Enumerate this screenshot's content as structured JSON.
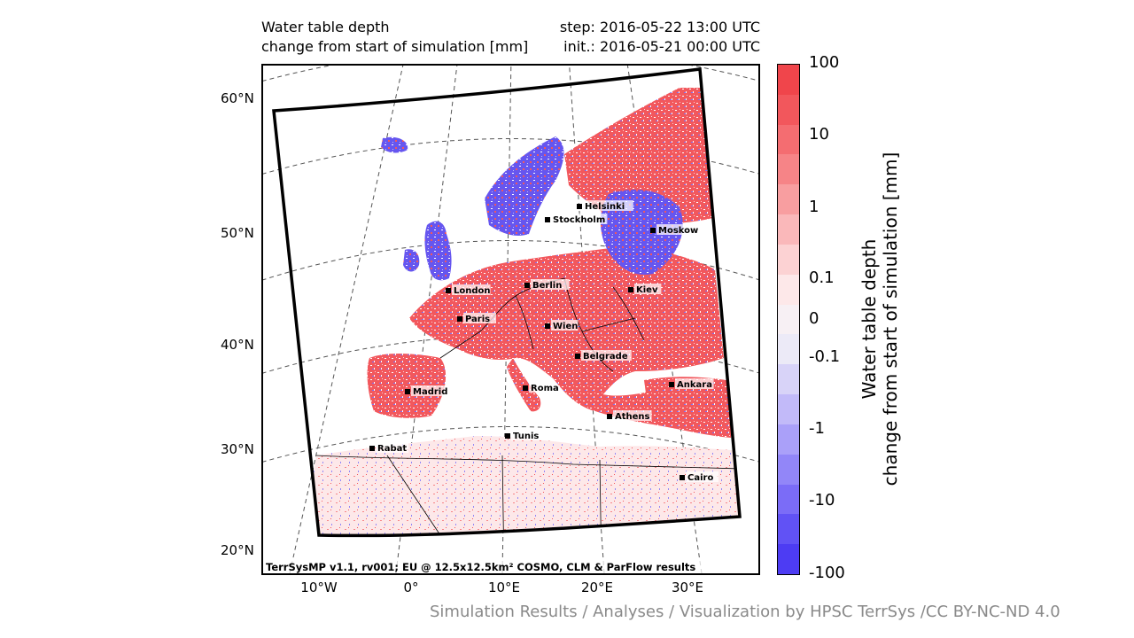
{
  "title": {
    "left_line1": "Water table depth",
    "left_line2": "change from start of simulation [mm]",
    "right_line1": "step: 2016-05-22 13:00 UTC",
    "right_line2": "init.: 2016-05-21 00:00 UTC"
  },
  "axes": {
    "lat_labels": [
      "60°N",
      "50°N",
      "40°N",
      "30°N",
      "20°N"
    ],
    "lon_labels": [
      "10°W",
      "0°",
      "10°E",
      "20°E",
      "30°E"
    ]
  },
  "cities": [
    "Helsinki",
    "Stockholm",
    "Moskow",
    "London",
    "Berlin",
    "Kiev",
    "Paris",
    "Wien",
    "Belgrade",
    "Madrid",
    "Roma",
    "Ankara",
    "Athens",
    "Tunis",
    "Rabat",
    "Cairo"
  ],
  "map_footer": "TerrSysMP v1.1, rv001; EU @ 12.5x12.5km² COSMO, CLM & ParFlow results",
  "colorbar": {
    "label_line1": "Water table depth",
    "label_line2": "change from start of simulation [mm]",
    "ticks": [
      "100",
      "10",
      "1",
      "0.1",
      "0",
      "-0.1",
      "-1",
      "-10",
      "-100"
    ],
    "colors": [
      "#f0454b",
      "#f2575c",
      "#f46d71",
      "#f68487",
      "#f89ea0",
      "#fab8ba",
      "#fcd2d3",
      "#fde8e9",
      "#f7f0f4",
      "#eceaf7",
      "#d8d3f8",
      "#c2baf9",
      "#aaa0f9",
      "#9286f8",
      "#7b6cf7",
      "#6152f5",
      "#4d3cf3"
    ]
  },
  "credit": "Simulation Results / Analyses / Visualization by HPSC TerrSys /CC BY-NC-ND 4.0"
}
